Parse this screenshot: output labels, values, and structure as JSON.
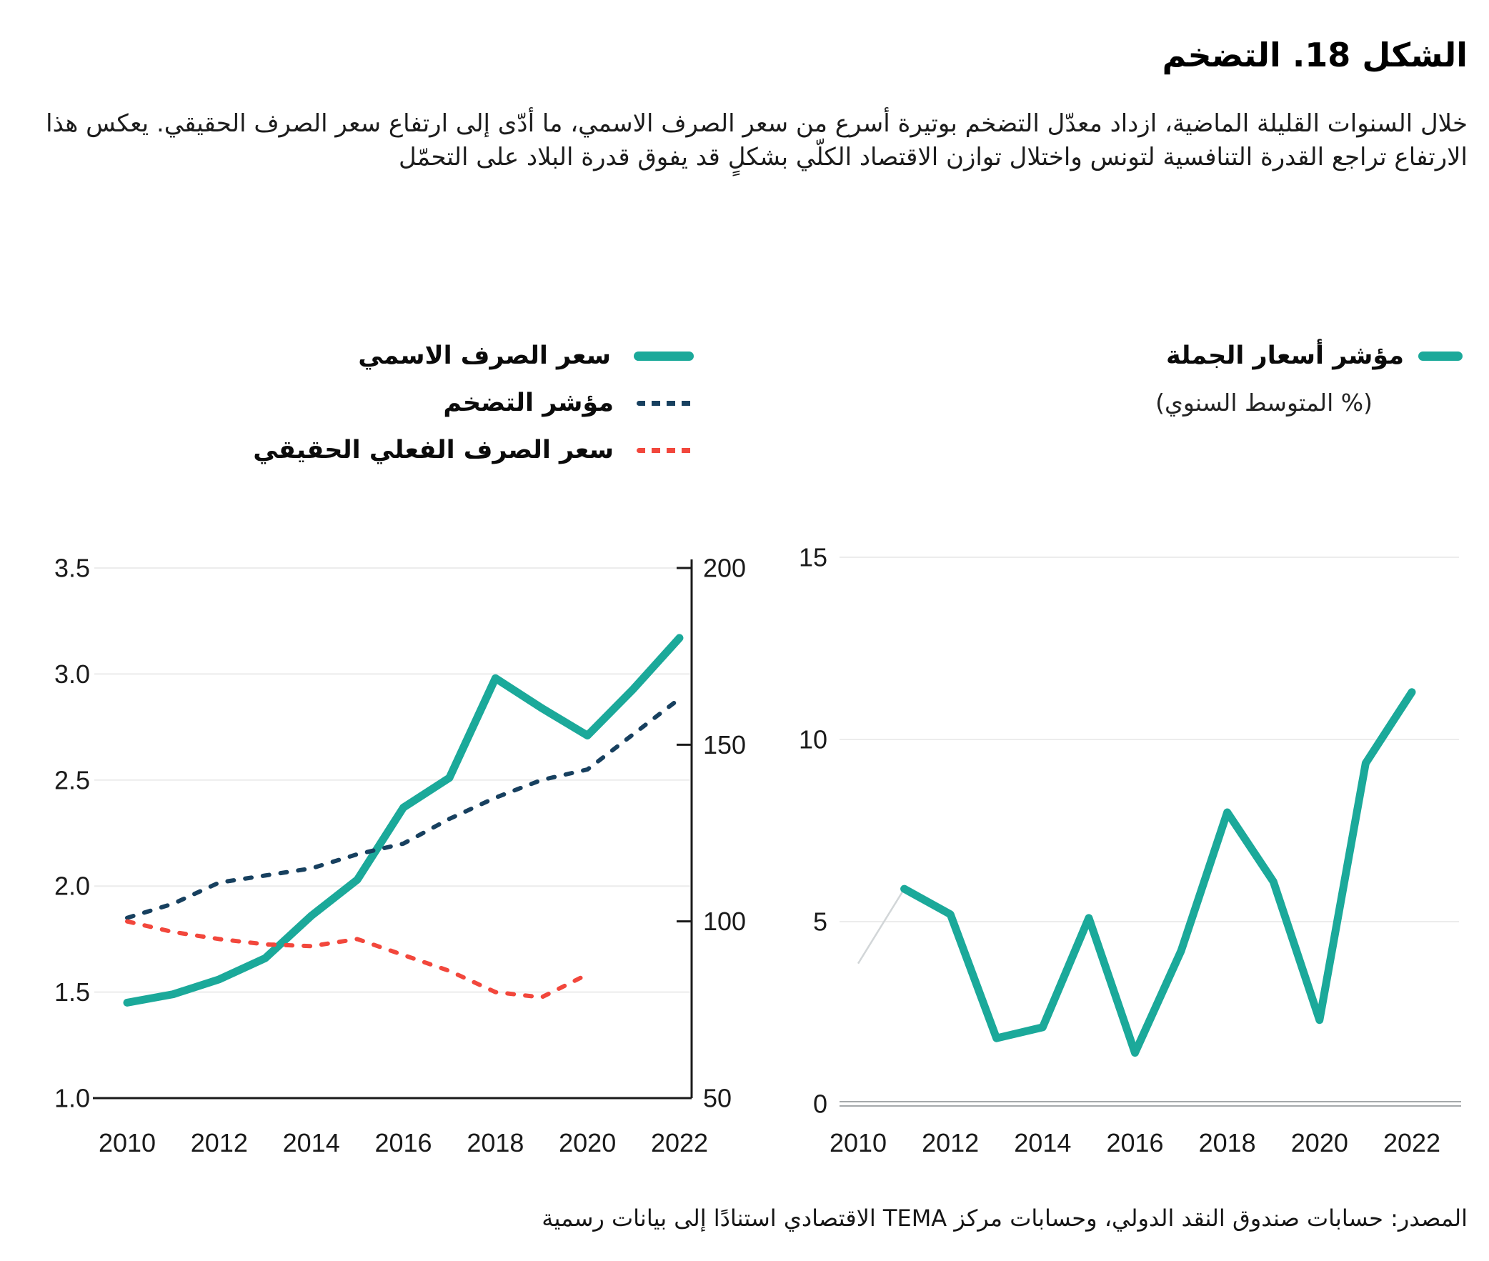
{
  "title": "الشكل 18. التضخم",
  "description": "خلال السنوات القليلة الماضية، ازداد معدّل التضخم بوتيرة أسرع من سعر الصرف الاسمي، ما أدّى إلى ارتفاع سعر الصرف الحقيقي. يعكس هذا الارتفاع تراجع القدرة التنافسية لتونس واختلال توازن الاقتصاد الكلّي بشكلٍ قد يفوق قدرة البلاد على التحمّل",
  "source": "المصدر: حسابات صندوق النقد الدولي،  وحسابات مركز TEMA الاقتصادي استنادًا إلى بيانات رسمية",
  "colors": {
    "teal": "#1ba99a",
    "navy": "#17405f",
    "red": "#f2473c",
    "grid": "#ececec",
    "axis": "#1a1a1a",
    "gray_axis": "#a5a9ab",
    "lead_in": "#d2d6d8"
  },
  "legend_left": [
    {
      "label": "سعر الصرف الاسمي",
      "style": "solid",
      "color": "#1ba99a"
    },
    {
      "label": "مؤشر التضخم",
      "style": "dashed",
      "color": "#17405f"
    },
    {
      "label": "سعر الصرف الفعلي الحقيقي",
      "style": "dashed",
      "color": "#f2473c"
    }
  ],
  "legend_right": {
    "label": "مؤشر أسعار الجملة",
    "sublabel": "(% المتوسط السنوي)"
  },
  "chart_data": [
    {
      "type": "line",
      "title": "",
      "xlabel": "",
      "ylabel_left": "",
      "ylabel_right": "",
      "xlim": [
        2009.3,
        2022.3
      ],
      "ylim_left": [
        1.0,
        3.5
      ],
      "ylim_right": [
        50,
        200
      ],
      "grid": true,
      "legend_position": "top-left-above-chart",
      "yticks_left": [
        "3.5",
        "3.0",
        "2.5",
        "2.0",
        "1.5",
        "1.0"
      ],
      "yticks_right": [
        "200",
        "150",
        "100",
        "50"
      ],
      "xticks": [
        "2010",
        "2012",
        "2014",
        "2016",
        "2018",
        "2020",
        "2022"
      ],
      "series": [
        {
          "id": "nominal-exchange-rate",
          "name": "سعر الصرف الاسمي",
          "axis": "left",
          "style": "solid",
          "color": "#1ba99a",
          "x": [
            2010,
            2011,
            2012,
            2013,
            2014,
            2015,
            2016,
            2017,
            2018,
            2019,
            2020,
            2021,
            2022
          ],
          "values": [
            1.45,
            1.49,
            1.56,
            1.66,
            1.86,
            2.03,
            2.37,
            2.51,
            2.98,
            2.84,
            2.71,
            2.93,
            3.17
          ]
        },
        {
          "id": "inflation-index",
          "name": "مؤشر التضخم",
          "axis": "right",
          "style": "dashed",
          "color": "#17405f",
          "x": [
            2010,
            2011,
            2012,
            2013,
            2014,
            2015,
            2016,
            2017,
            2018,
            2019,
            2020,
            2021,
            2022
          ],
          "values": [
            101,
            105,
            111,
            113,
            115,
            119,
            122,
            129,
            135,
            140,
            143,
            153,
            163
          ]
        },
        {
          "id": "real-effective-exchange-rate",
          "name": "سعر الصرف الفعلي الحقيقي",
          "axis": "right",
          "style": "dashed",
          "color": "#f2473c",
          "x": [
            2010,
            2011,
            2012,
            2013,
            2014,
            2015,
            2016,
            2017,
            2018,
            2019,
            2020
          ],
          "values": [
            100,
            97,
            95,
            93.5,
            93,
            95,
            90.5,
            86,
            80,
            78.5,
            85
          ]
        }
      ]
    },
    {
      "type": "line",
      "title": "مؤشر أسعار الجملة (% المتوسط السنوي)",
      "xlabel": "",
      "ylabel": "",
      "xlim": [
        2009.6,
        2023
      ],
      "ylim": [
        0,
        15
      ],
      "grid": true,
      "yticks": [
        "15",
        "10",
        "5",
        "0"
      ],
      "xticks": [
        "2010",
        "2012",
        "2014",
        "2016",
        "2018",
        "2020",
        "2022"
      ],
      "series": [
        {
          "id": "wholesale-price-index",
          "name": "مؤشر أسعار الجملة",
          "style": "solid",
          "color": "#1ba99a",
          "x": [
            2011,
            2012,
            2013,
            2014,
            2015,
            2016,
            2017,
            2018,
            2019,
            2020,
            2021,
            2022
          ],
          "values": [
            5.9,
            5.2,
            1.8,
            2.1,
            5.1,
            1.4,
            4.2,
            8.0,
            6.1,
            2.3,
            9.35,
            11.3
          ]
        }
      ],
      "lead_in": {
        "id": "lead-in-segment",
        "x": [
          2010,
          2011
        ],
        "values": [
          3.85,
          5.9
        ]
      }
    }
  ]
}
